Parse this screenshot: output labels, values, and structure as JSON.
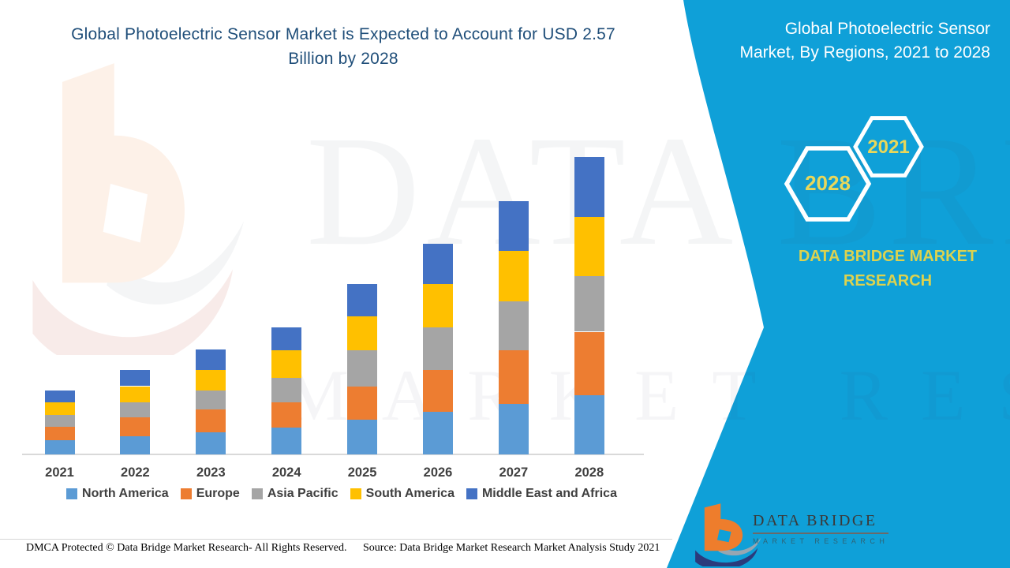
{
  "page": {
    "background": "#FFFFFF"
  },
  "title": {
    "line1": "Global Photoelectric Sensor Market is Expected to Account for USD 2.57",
    "line2": "Billion by 2028",
    "color": "#1F4E79"
  },
  "side_panel": {
    "background_color": "#0FA0D8",
    "heading_line1": "Global Photoelectric Sensor",
    "heading_line2": "Market, By Regions, 2021 to 2028",
    "hexagon_labels": [
      "2028",
      "2021"
    ],
    "hexagon_label_color": "#E8D75A",
    "brand_line1": "DATA BRIDGE MARKET",
    "brand_line2": "RESEARCH",
    "brand_text_color": "#DCD24F"
  },
  "chart_data": {
    "type": "bar",
    "stacked": true,
    "title": "Global Photoelectric Sensor Market is Expected to Account for USD 2.57 Billion by 2028",
    "value_unit": "USD Billion",
    "categories": [
      "2021",
      "2022",
      "2023",
      "2024",
      "2025",
      "2026",
      "2027",
      "2028"
    ],
    "series": [
      {
        "name": "North America",
        "color": "#5B9BD5",
        "values": [
          0.12,
          0.16,
          0.19,
          0.23,
          0.3,
          0.37,
          0.44,
          0.51
        ]
      },
      {
        "name": "Europe",
        "color": "#ED7D31",
        "values": [
          0.12,
          0.16,
          0.2,
          0.22,
          0.29,
          0.36,
          0.46,
          0.55
        ]
      },
      {
        "name": "Asia Pacific",
        "color": "#A5A5A5",
        "values": [
          0.1,
          0.13,
          0.16,
          0.21,
          0.31,
          0.37,
          0.42,
          0.48
        ]
      },
      {
        "name": "South America",
        "color": "#FFC000",
        "values": [
          0.11,
          0.14,
          0.18,
          0.24,
          0.29,
          0.37,
          0.44,
          0.51
        ]
      },
      {
        "name": "Middle East and Africa",
        "color": "#4472C4",
        "values": [
          0.1,
          0.14,
          0.18,
          0.2,
          0.28,
          0.35,
          0.43,
          0.52
        ]
      }
    ],
    "totals": [
      0.55,
      0.73,
      0.91,
      1.1,
      1.47,
      1.82,
      2.19,
      2.57
    ],
    "ylim": [
      0,
      2.7
    ],
    "grid": false,
    "legend_position": "bottom",
    "axis_line_color": "#D9D9D9",
    "xlabel_color": "#3F3F3F"
  },
  "watermark": {
    "line1": "DATA BRIDGE",
    "line2": "MARKET RESEARCH"
  },
  "footer": {
    "left": "DMCA Protected © Data Bridge Market Research- All Rights Reserved.",
    "right": "Source: Data Bridge Market Research Market Analysis Study 2021"
  },
  "logo": {
    "title": "DATA BRIDGE",
    "subtitle": "MARKET RESEARCH"
  }
}
